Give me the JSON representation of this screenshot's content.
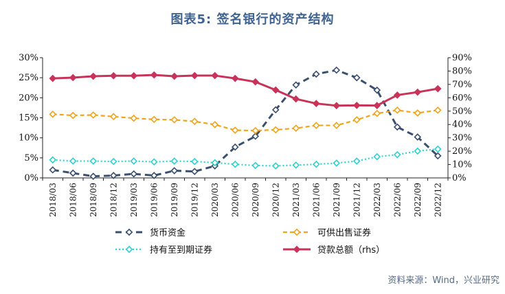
{
  "figure": {
    "title": "图表5:   签名银行的资产结构",
    "source": "资料来源：Wind，兴业研究"
  },
  "colors": {
    "cash": "#3a4f6e",
    "afs": "#f0a41b",
    "htm": "#2fd1d1",
    "total": "#c8335a",
    "axis": "#222222"
  },
  "chart_data": {
    "type": "line",
    "title": "签名银行的资产结构",
    "categories": [
      "2018/03",
      "2018/06",
      "2018/09",
      "2018/12",
      "2019/03",
      "2019/06",
      "2019/09",
      "2019/12",
      "2020/03",
      "2020/06",
      "2020/09",
      "2020/12",
      "2021/03",
      "2021/06",
      "2021/09",
      "2021/12",
      "2022/03",
      "2022/06",
      "2022/09",
      "2022/12"
    ],
    "y_left": {
      "ylim": [
        0,
        30
      ],
      "ticks": [
        "0%",
        "5%",
        "10%",
        "15%",
        "20%",
        "25%",
        "30%"
      ]
    },
    "y_right": {
      "ylim": [
        0,
        90
      ],
      "ticks": [
        "0%",
        "10%",
        "20%",
        "30%",
        "40%",
        "50%",
        "60%",
        "70%",
        "80%",
        "90%"
      ]
    },
    "series": [
      {
        "name": "货币资金",
        "axis": "left",
        "style": "dash-bold",
        "values": [
          2.0,
          1.2,
          0.4,
          0.6,
          1.0,
          0.6,
          1.8,
          1.6,
          3.0,
          7.7,
          10.4,
          17.0,
          23.2,
          25.9,
          26.9,
          25.0,
          21.9,
          12.7,
          10.2,
          5.5
        ]
      },
      {
        "name": "可供出售证券",
        "axis": "left",
        "style": "dash",
        "values": [
          15.9,
          15.6,
          15.7,
          15.3,
          14.9,
          14.6,
          14.5,
          14.1,
          13.3,
          11.9,
          11.8,
          12.0,
          12.4,
          13.1,
          13.1,
          14.5,
          16.1,
          16.9,
          16.2,
          16.9
        ]
      },
      {
        "name": "持有至到期证券",
        "axis": "left",
        "style": "dot",
        "values": [
          4.5,
          4.2,
          4.2,
          4.1,
          4.2,
          4.0,
          4.2,
          4.1,
          3.8,
          3.4,
          3.1,
          3.0,
          3.2,
          3.4,
          3.7,
          4.2,
          5.3,
          5.8,
          6.7,
          7.2
        ]
      },
      {
        "name": "贷款总额（rhs）",
        "axis": "right",
        "style": "solid",
        "values": [
          74.5,
          75.1,
          76.1,
          76.5,
          76.5,
          77.1,
          76.1,
          76.6,
          76.6,
          74.5,
          71.9,
          65.8,
          59.1,
          55.7,
          54.1,
          54.3,
          54.2,
          62.0,
          64.2,
          66.8
        ]
      }
    ],
    "legend_position": "bottom",
    "grid": false
  }
}
